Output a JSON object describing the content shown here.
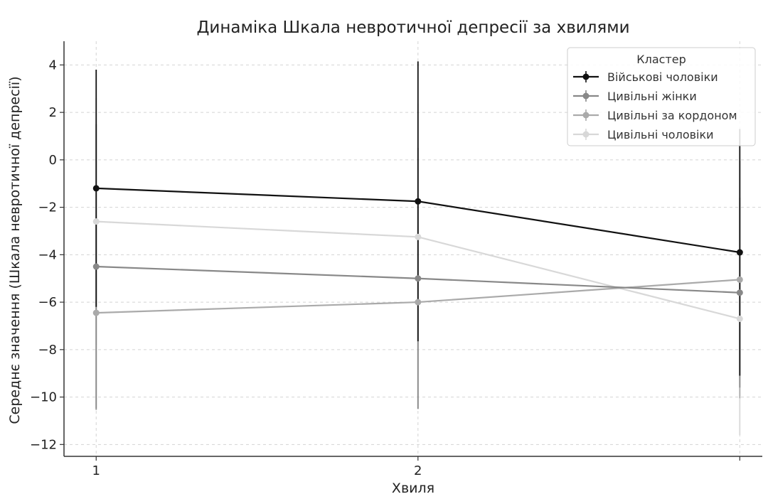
{
  "chart_data": {
    "type": "line",
    "title": "Динаміка Шкала невротичної депресії за хвилями",
    "xlabel": "Хвиля",
    "ylabel": "Середнє значення (Шкала невротичної депресії)",
    "x": [
      1,
      2,
      3
    ],
    "x_tick_labels": [
      "1",
      "2",
      ""
    ],
    "xlim": [
      0.9,
      3.07
    ],
    "ylim": [
      -12.5,
      5.0
    ],
    "y_ticks": [
      4,
      2,
      0,
      -2,
      -4,
      -6,
      -8,
      -10,
      -12
    ],
    "y_tick_labels": [
      "4",
      "2",
      "0",
      "−2",
      "−4",
      "−6",
      "−8",
      "−10",
      "−12"
    ],
    "grid": true,
    "legend_title": "Кластер",
    "legend_position": "top-right",
    "series": [
      {
        "name": "Військові чоловіки",
        "color": "#111111",
        "values": [
          -1.2,
          -1.75,
          -3.9
        ],
        "errors": [
          5.0,
          5.9,
          5.2
        ]
      },
      {
        "name": "Цивільні жінки",
        "color": "#888888",
        "values": [
          -4.5,
          -5.0,
          -5.6
        ],
        "errors": [
          6.0,
          5.5,
          4.0
        ]
      },
      {
        "name": "Цивільні за кордоном",
        "color": "#aaaaaa",
        "values": [
          -6.45,
          -6.0,
          -5.05
        ],
        "errors": [
          4.1,
          4.5,
          5.0
        ]
      },
      {
        "name": "Цивільні чоловіки",
        "color": "#d8d8d8",
        "values": [
          -2.6,
          -3.25,
          -6.7
        ],
        "errors": [
          5.2,
          5.6,
          4.9
        ]
      }
    ]
  }
}
